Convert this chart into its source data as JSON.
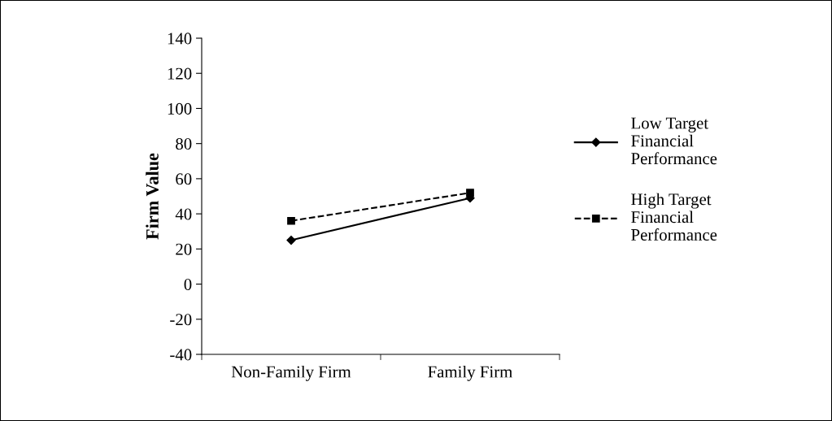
{
  "chart_data": {
    "type": "line",
    "ylabel": "Firm Value",
    "categories": [
      "Non-Family Firm",
      "Family Firm"
    ],
    "series": [
      {
        "name": "Low Target\nFinancial\nPerformance",
        "color": "#000000",
        "values": [
          25,
          49
        ],
        "marker": "diamond",
        "line_style": "solid"
      },
      {
        "name": "High Target\nFinancial\nPerformance",
        "color": "#000000",
        "values": [
          36,
          52
        ],
        "marker": "square",
        "line_style": "dashed"
      }
    ],
    "ylim": [
      -40,
      140
    ],
    "yticks": [
      -40,
      -20,
      0,
      20,
      40,
      60,
      80,
      100,
      120,
      140
    ],
    "grid": false,
    "legend": "right"
  }
}
